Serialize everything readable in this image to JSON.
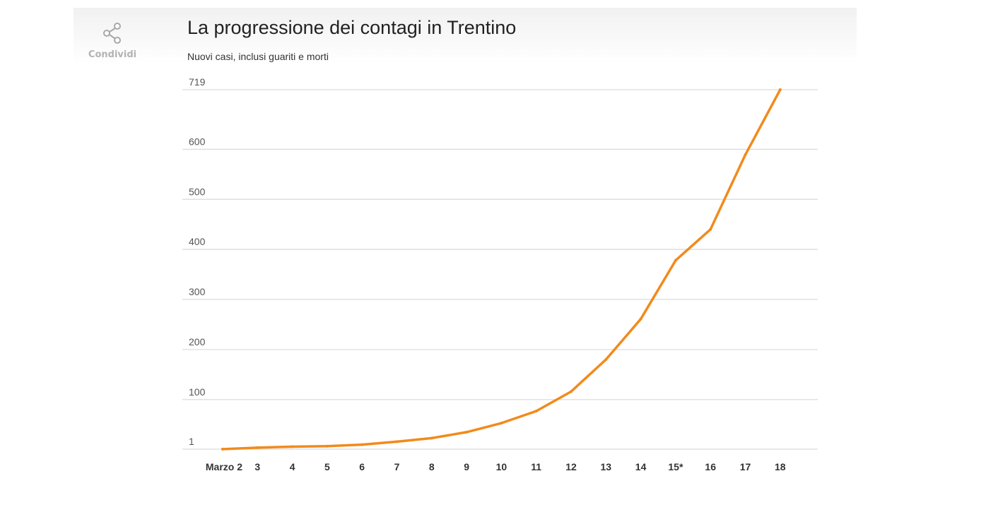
{
  "share": {
    "label": "Condividi",
    "icon": "share-icon"
  },
  "colors": {
    "line": "#f28a1c",
    "grid": "#d9d9d9",
    "accent_text": "#b3b3b3"
  },
  "chart_data": {
    "type": "line",
    "title": "La progressione dei contagi in Trentino",
    "subtitle": "Nuovi casi, inclusi guariti e morti",
    "xlabel": "",
    "ylabel": "",
    "categories": [
      "Marzo 2",
      "3",
      "4",
      "5",
      "6",
      "7",
      "8",
      "9",
      "10",
      "11",
      "12",
      "13",
      "14",
      "15*",
      "16",
      "17",
      "18"
    ],
    "series": [
      {
        "values": [
          1,
          4,
          6,
          7,
          10,
          16,
          23,
          35,
          53,
          77,
          116,
          180,
          261,
          378,
          440,
          589,
          719
        ]
      }
    ],
    "yticks": [
      1,
      100,
      200,
      300,
      400,
      500,
      600,
      719
    ],
    "ylim": [
      1,
      719
    ],
    "grid": true,
    "legend": "none"
  }
}
